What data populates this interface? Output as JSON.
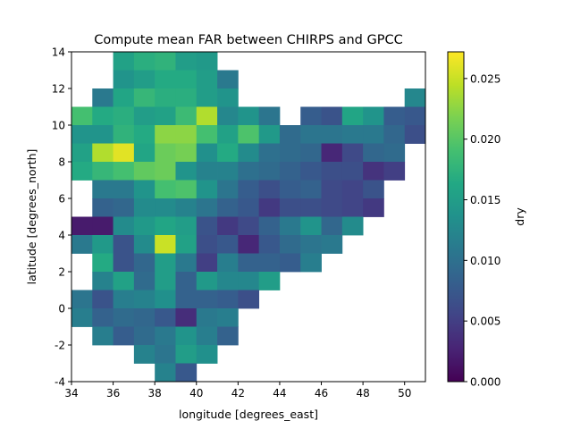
{
  "chart_data": {
    "type": "heatmap",
    "title": "Compute mean FAR between CHIRPS and GPCC",
    "xlabel": "longitude [degrees_east]",
    "ylabel": "latitude [degrees_north]",
    "xlim": [
      34,
      51
    ],
    "ylim": [
      -4,
      14
    ],
    "x_ticks": [
      "34",
      "36",
      "38",
      "40",
      "42",
      "44",
      "46",
      "48",
      "50"
    ],
    "y_ticks": [
      "-4",
      "-2",
      "0",
      "2",
      "4",
      "6",
      "8",
      "10",
      "12",
      "14"
    ],
    "colormap": "viridis",
    "grid": false,
    "colorbar": {
      "label": "dry",
      "range": [
        0.0,
        0.0272
      ],
      "ticks": [
        "0.000",
        "0.005",
        "0.010",
        "0.015",
        "0.020",
        "0.025"
      ]
    },
    "x_cells": [
      34,
      35,
      36,
      37,
      38,
      39,
      40,
      41,
      42,
      43,
      44,
      45,
      46,
      47,
      48,
      49,
      50
    ],
    "y_cells": [
      13,
      12,
      11,
      10,
      9,
      8,
      7,
      6,
      5,
      4,
      3,
      2,
      1,
      0,
      -1,
      -2,
      -3,
      -4
    ],
    "cell_size": 1,
    "values": [
      [
        null,
        null,
        0.0155,
        0.017,
        0.0175,
        0.015,
        0.0145,
        null,
        null,
        null,
        null,
        null,
        null,
        null,
        null,
        null,
        null
      ],
      [
        null,
        null,
        0.014,
        0.015,
        0.0165,
        0.0165,
        0.015,
        0.011,
        null,
        null,
        null,
        null,
        null,
        null,
        null,
        null,
        null
      ],
      [
        null,
        0.011,
        0.016,
        0.018,
        0.017,
        0.017,
        0.015,
        0.014,
        null,
        null,
        null,
        null,
        null,
        null,
        null,
        null,
        0.0125
      ],
      [
        0.019,
        0.0165,
        0.017,
        0.015,
        0.0155,
        0.0185,
        0.024,
        0.0125,
        0.014,
        0.0105,
        null,
        0.008,
        0.007,
        0.016,
        0.014,
        0.008,
        0.0075
      ],
      [
        0.014,
        0.014,
        0.0175,
        0.0165,
        0.0225,
        0.0225,
        0.019,
        0.0155,
        0.0195,
        0.0145,
        0.0095,
        0.0105,
        0.0105,
        0.011,
        0.011,
        0.009,
        0.0065
      ],
      [
        0.0155,
        0.024,
        0.026,
        0.016,
        0.021,
        0.0215,
        0.0135,
        0.0165,
        0.013,
        0.01,
        0.0095,
        0.009,
        0.003,
        0.006,
        0.009,
        0.0095,
        null
      ],
      [
        0.0165,
        0.018,
        0.019,
        0.0205,
        0.021,
        0.014,
        0.012,
        0.012,
        0.01,
        0.0095,
        0.0085,
        0.0075,
        0.0065,
        0.0065,
        0.004,
        0.005,
        null
      ],
      [
        null,
        0.011,
        0.011,
        0.014,
        0.019,
        0.0195,
        0.014,
        0.0105,
        0.008,
        0.0065,
        0.008,
        0.0085,
        0.006,
        0.0055,
        0.007,
        null,
        null
      ],
      [
        null,
        0.0085,
        0.009,
        0.013,
        0.013,
        0.012,
        0.0105,
        0.0085,
        0.0075,
        0.0045,
        0.0065,
        0.0065,
        0.006,
        0.0055,
        0.0045,
        null,
        null
      ],
      [
        0.002,
        0.002,
        0.013,
        0.0145,
        0.016,
        0.015,
        0.007,
        0.0045,
        0.006,
        0.0085,
        0.011,
        0.014,
        0.009,
        0.013,
        null,
        null,
        null
      ],
      [
        0.011,
        0.0145,
        0.007,
        0.013,
        0.025,
        0.0155,
        0.0065,
        0.0075,
        0.003,
        0.0075,
        0.0095,
        0.0105,
        0.011,
        null,
        null,
        null,
        null
      ],
      [
        null,
        0.0165,
        0.007,
        0.009,
        0.015,
        0.011,
        0.005,
        0.0115,
        0.0085,
        0.0085,
        0.008,
        0.0115,
        null,
        null,
        null,
        null,
        null
      ],
      [
        null,
        0.012,
        0.0155,
        0.0095,
        0.015,
        0.0085,
        0.0145,
        0.0125,
        0.0125,
        0.015,
        null,
        null,
        null,
        null,
        null,
        null,
        null
      ],
      [
        0.0105,
        0.007,
        0.0115,
        0.012,
        0.0135,
        0.0085,
        0.0085,
        0.008,
        0.0065,
        null,
        null,
        null,
        null,
        null,
        null,
        null,
        null
      ],
      [
        0.0115,
        0.0085,
        0.0095,
        0.009,
        0.0075,
        0.0035,
        0.011,
        0.0115,
        null,
        null,
        null,
        null,
        null,
        null,
        null,
        null,
        null
      ],
      [
        null,
        0.0115,
        0.008,
        0.0095,
        0.011,
        0.014,
        0.0115,
        0.0085,
        null,
        null,
        null,
        null,
        null,
        null,
        null,
        null,
        null
      ],
      [
        null,
        null,
        null,
        0.012,
        0.0105,
        0.015,
        0.0135,
        null,
        null,
        null,
        null,
        null,
        null,
        null,
        null,
        null,
        null
      ],
      [
        null,
        null,
        null,
        null,
        0.012,
        0.0075,
        null,
        null,
        null,
        null,
        null,
        null,
        null,
        null,
        null,
        null,
        null
      ]
    ]
  }
}
